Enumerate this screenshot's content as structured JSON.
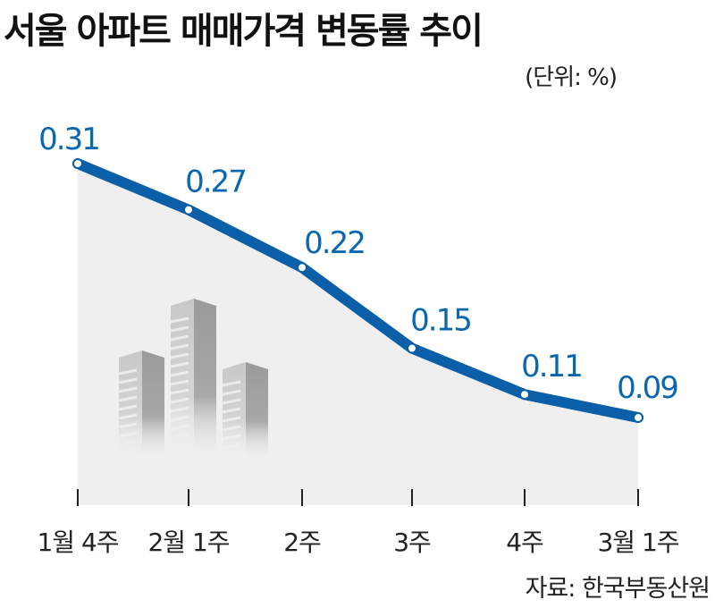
{
  "chart_data": {
    "type": "area",
    "title": "서울 아파트 매매가격 변동률 추이",
    "unit": "(단위: %)",
    "source": "자료: 한국부동산원",
    "categories": [
      "1월 4주",
      "2월 1주",
      "2주",
      "3주",
      "4주",
      "3월 1주"
    ],
    "values": [
      0.31,
      0.27,
      0.22,
      0.15,
      0.11,
      0.09
    ],
    "data_labels": [
      "0.31",
      "0.27",
      "0.22",
      "0.15",
      "0.11",
      "0.09"
    ],
    "grid": false,
    "colors": {
      "line": "#0a5fa8",
      "label": "#0a67b0",
      "area": "#efefef"
    }
  }
}
